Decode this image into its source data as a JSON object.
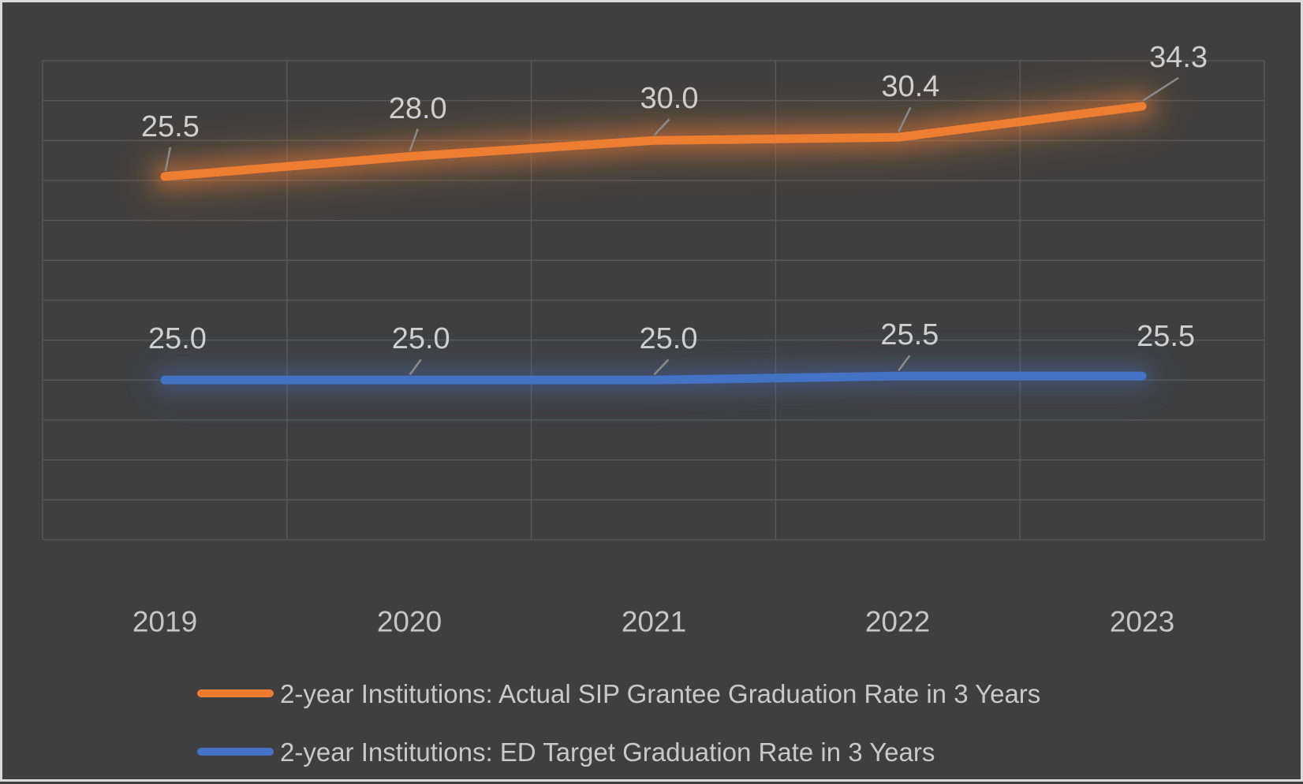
{
  "chart_data": {
    "type": "line",
    "categories": [
      "2019",
      "2020",
      "2021",
      "2022",
      "2023"
    ],
    "series": [
      {
        "name": "2-year Institutions: Actual SIP Grantee Graduation Rate in 3 Years",
        "values": [
          25.5,
          28.0,
          30.0,
          30.4,
          34.3
        ],
        "data_labels": [
          "25.5",
          "28.0",
          "30.0",
          "30.4",
          "34.3"
        ],
        "color": "#ED7D31",
        "axis": "secondary"
      },
      {
        "name": "2-year Institutions: ED Target Graduation Rate in 3 Years",
        "values": [
          25.0,
          25.0,
          25.0,
          25.5,
          25.5
        ],
        "data_labels": [
          "25.0",
          "25.0",
          "25.0",
          "25.5",
          "25.5"
        ],
        "color": "#4472C4",
        "axis": "primary"
      }
    ],
    "title": "",
    "xlabel": "",
    "ylabel": "",
    "axes": {
      "primary": {
        "min": 5,
        "max": 65,
        "major_unit": 5
      },
      "secondary": {
        "min": -20,
        "max": 40,
        "major_unit": 5
      },
      "y_axis_labels_visible": false
    },
    "grid": {
      "horizontal": true,
      "vertical": true,
      "h_lines": 13,
      "v_lines": 6
    },
    "legend_position": "bottom"
  },
  "colors": {
    "background": "#3F3F3F",
    "outer_border": "#DCDCDC",
    "gridline": "#575757",
    "data_label_text": "#CFCFCF",
    "axis_label_text": "#C6C6C6",
    "legend_text": "#C9C9C9",
    "leader_line": "#8A8A8A"
  }
}
